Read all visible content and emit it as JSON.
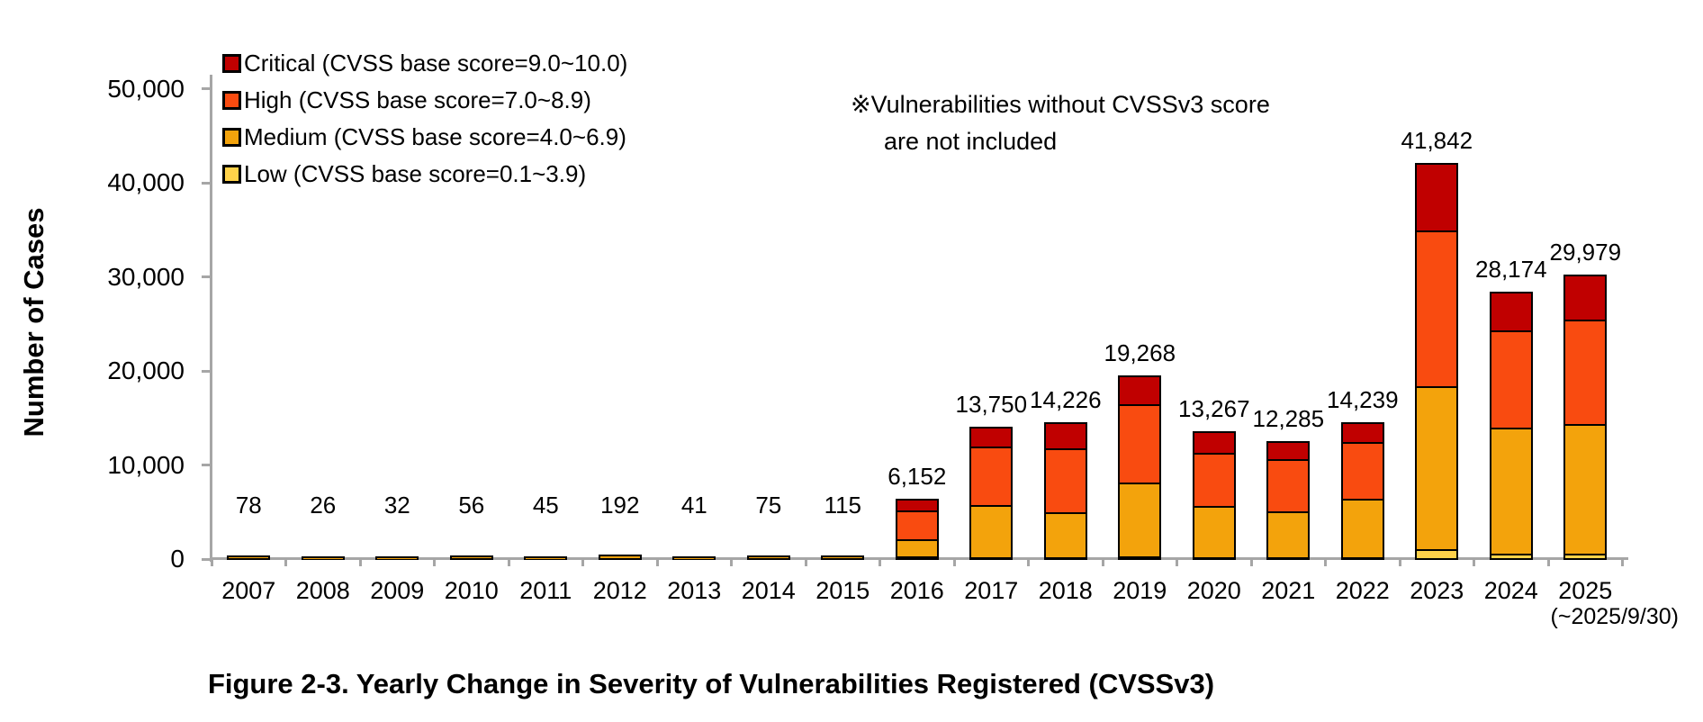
{
  "figure": {
    "caption": "Figure 2-3. Yearly Change in Severity of Vulnerabilities Registered (CVSSv3)",
    "y_axis_title": "Number of Cases",
    "note_line1": "※Vulnerabilities without CVSSv3 score",
    "note_line2": "are not included",
    "x_axis_extra_label": "(~2025/9/30)"
  },
  "legend": {
    "items": [
      {
        "label": "Critical (CVSS base score=9.0~10.0)",
        "color": "#C00000"
      },
      {
        "label": "High (CVSS base score=7.0~8.9)",
        "color": "#F94B10"
      },
      {
        "label": "Medium (CVSS base score=4.0~6.9)",
        "color": "#F3A30C"
      },
      {
        "label": "Low (CVSS base score=0.1~3.9)",
        "color": "#FFD24A"
      }
    ]
  },
  "chart_data": {
    "type": "bar",
    "stacked": true,
    "title": "Figure 2-3. Yearly Change in Severity of Vulnerabilities Registered (CVSSv3)",
    "xlabel": "",
    "ylabel": "Number of Cases",
    "ylim": [
      0,
      50000
    ],
    "yticks": [
      0,
      10000,
      20000,
      30000,
      40000,
      50000
    ],
    "ytick_labels": [
      "0",
      "10,000",
      "20,000",
      "30,000",
      "40,000",
      "50,000"
    ],
    "grid": false,
    "legend_position": "top-left",
    "annotation": "※Vulnerabilities without CVSSv3 score are not included",
    "categories": [
      "2007",
      "2008",
      "2009",
      "2010",
      "2011",
      "2012",
      "2013",
      "2014",
      "2015",
      "2016",
      "2017",
      "2018",
      "2019",
      "2020",
      "2021",
      "2022",
      "2023",
      "2024",
      "2025"
    ],
    "last_category_note": "(~2025/9/30)",
    "totals": [
      78,
      26,
      32,
      56,
      45,
      192,
      41,
      75,
      115,
      6152,
      13750,
      14226,
      19268,
      13267,
      12285,
      14239,
      41842,
      28174,
      29979
    ],
    "total_labels": [
      "78",
      "26",
      "32",
      "56",
      "45",
      "192",
      "41",
      "75",
      "115",
      "6,152",
      "13,750",
      "14,226",
      "19,268",
      "13,267",
      "12,285",
      "14,239",
      "41,842",
      "28,174",
      "29,979"
    ],
    "series": [
      {
        "name": "Low (CVSS base score=0.1~3.9)",
        "color": "#FFD24A",
        "values": [
          0,
          0,
          0,
          0,
          0,
          0,
          0,
          0,
          0,
          152,
          100,
          100,
          168,
          100,
          100,
          100,
          942,
          500,
          500
        ]
      },
      {
        "name": "Medium (CVSS base score=4.0~6.9)",
        "color": "#F3A30C",
        "values": [
          78,
          26,
          32,
          56,
          45,
          192,
          41,
          75,
          115,
          1900,
          5550,
          4776,
          7900,
          5467,
          4905,
          6189,
          17300,
          13374,
          13729
        ]
      },
      {
        "name": "High (CVSS base score=7.0~8.9)",
        "color": "#F94B10",
        "values": [
          0,
          0,
          0,
          0,
          0,
          0,
          0,
          0,
          0,
          3050,
          6250,
          6800,
          8300,
          5600,
          5500,
          6080,
          16600,
          10300,
          11100
        ]
      },
      {
        "name": "Critical (CVSS base score=9.0~10.0)",
        "color": "#C00000",
        "values": [
          0,
          0,
          0,
          0,
          0,
          0,
          0,
          0,
          0,
          1050,
          1850,
          2550,
          2900,
          2100,
          1780,
          1870,
          7000,
          4000,
          4650
        ]
      }
    ],
    "series_values_estimated_from_pixels": true
  }
}
